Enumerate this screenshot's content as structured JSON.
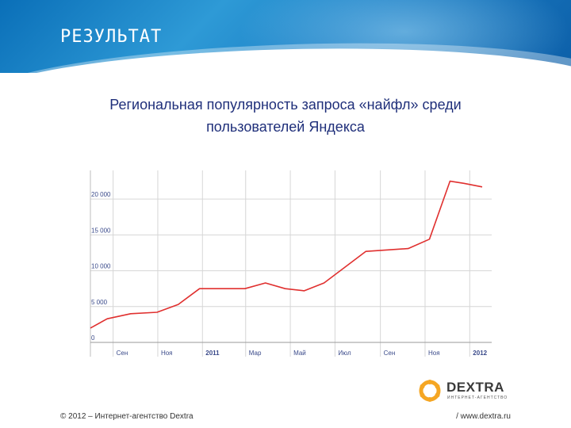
{
  "slide": {
    "title": "РЕЗУЛЬТАТ",
    "footer_left": "© 2012 – Интернет-агентство Dextra",
    "footer_right": "/  www.dextra.ru"
  },
  "logo": {
    "name": "DEXTRA",
    "tagline": "ИНТЕРНЕТ-АГЕНТСТВО",
    "accent_color": "#f5a623"
  },
  "chart_data": {
    "type": "line",
    "title_lines": [
      "Региональная популярность запроса «найфл» среди",
      "пользователей Яндекса"
    ],
    "xlabel": "",
    "ylabel": "",
    "x_tick_labels": [
      "Сен",
      "Ноя",
      "2011",
      "Мар",
      "Май",
      "Июл",
      "Сен",
      "Ноя",
      "2012"
    ],
    "y_tick_labels": [
      "0",
      "5 000",
      "10 000",
      "15 000",
      "20 000"
    ],
    "ylim": [
      0,
      24000
    ],
    "grid": true,
    "legend": "none",
    "line_color": "#e0302f",
    "series": [
      {
        "x": [
          "2010-08-01",
          "2010-08-24",
          "2010-09-25",
          "2010-10-31",
          "2010-11-29",
          "2010-12-28",
          "2011-01-29",
          "2011-02-28",
          "2011-03-28",
          "2011-04-24",
          "2011-05-20",
          "2011-06-16",
          "2011-07-12",
          "2011-08-12",
          "2011-09-09",
          "2011-10-09",
          "2011-11-07",
          "2011-12-05",
          "2011-12-24",
          "2012-01-18"
        ],
        "values": [
          2000,
          3300,
          4000,
          4200,
          5300,
          7500,
          7500,
          7500,
          8300,
          7500,
          7200,
          8300,
          10300,
          12700,
          12900,
          13100,
          14400,
          22500,
          22200,
          21700
        ]
      }
    ]
  }
}
